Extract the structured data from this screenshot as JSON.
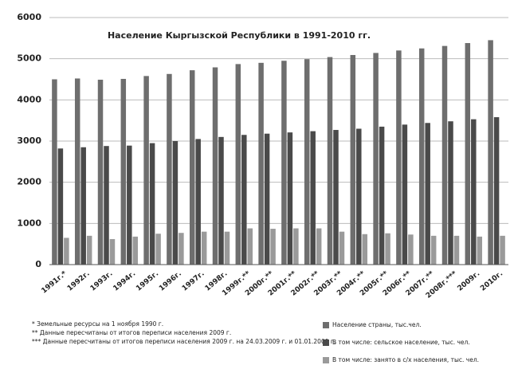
{
  "chart_data": {
    "type": "bar",
    "title": "Население Кыргызской Республики в 1991-2010 гг.",
    "categories": [
      "1991г.*",
      "1992г.",
      "1993г.",
      "1994г.",
      "1995г.",
      "1996г.",
      "1997г.",
      "1998г.",
      "1999г.**",
      "2000г.**",
      "2001г.**",
      "2002г.**",
      "2003г.**",
      "2004г.**",
      "2005г.**",
      "2006г.**",
      "2007г.**",
      "2008г.***",
      "2009г.",
      "2010г."
    ],
    "series": [
      {
        "name": "Население страны, тыс.чел.",
        "color": "#6e6e6e",
        "values": [
          4500,
          4520,
          4490,
          4510,
          4580,
          4630,
          4720,
          4790,
          4870,
          4900,
          4950,
          4990,
          5040,
          5090,
          5140,
          5200,
          5250,
          5310,
          5380,
          5450
        ]
      },
      {
        "name": "В том числе: сельское население, тыс. чел.",
        "color": "#4a4a4a",
        "values": [
          2820,
          2850,
          2880,
          2890,
          2950,
          3000,
          3050,
          3100,
          3150,
          3180,
          3210,
          3240,
          3270,
          3300,
          3350,
          3400,
          3440,
          3480,
          3530,
          3580
        ]
      },
      {
        "name": "В том числе: занято в с/х населения, тыс. чел.",
        "color": "#9a9a9a",
        "values": [
          650,
          700,
          620,
          680,
          750,
          770,
          800,
          800,
          880,
          870,
          880,
          880,
          800,
          740,
          760,
          730,
          700,
          700,
          680,
          700
        ]
      }
    ],
    "ylim": [
      0,
      6000
    ],
    "yticks": [
      0,
      1000,
      2000,
      3000,
      4000,
      5000,
      6000
    ],
    "grid": true,
    "notes": [
      "* Земельные ресурсы на 1 ноября 1990 г.",
      "** Данные пересчитаны от итогов переписи населения 2009 г.",
      "*** Данные пересчитаны от итогов переписи населения 2009 г. на 24.03.2009 г. и 01.01.2009 г."
    ]
  }
}
